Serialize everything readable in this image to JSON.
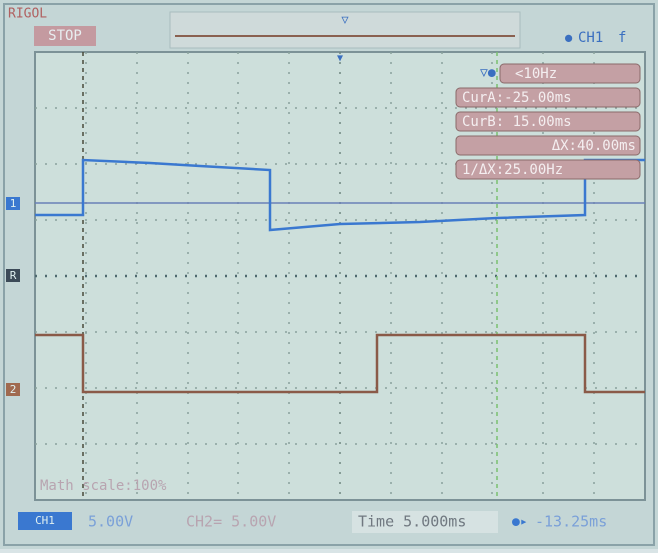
{
  "header": {
    "brand": "RIGOL",
    "status": "STOP",
    "channel": "CH1",
    "trigger_sense": "f"
  },
  "cursor_panel": {
    "frequency": "<10Hz",
    "cur_a": "CurA:-25.00ms",
    "cur_b": "CurB: 15.00ms",
    "delta_x": "ΔX:40.00ms",
    "inv_delta_x": "1/ΔX:25.00Hz"
  },
  "markers": {
    "ch1": "1",
    "ref": "R",
    "ch2": "2"
  },
  "math_scale": "Math scale:100%",
  "footer": {
    "ch1_label": "CH1",
    "ch1_scale": "5.00V",
    "ch2": "CH2= 5.00V",
    "time": "Time 5.000ms",
    "offset": "-13.25ms"
  }
}
